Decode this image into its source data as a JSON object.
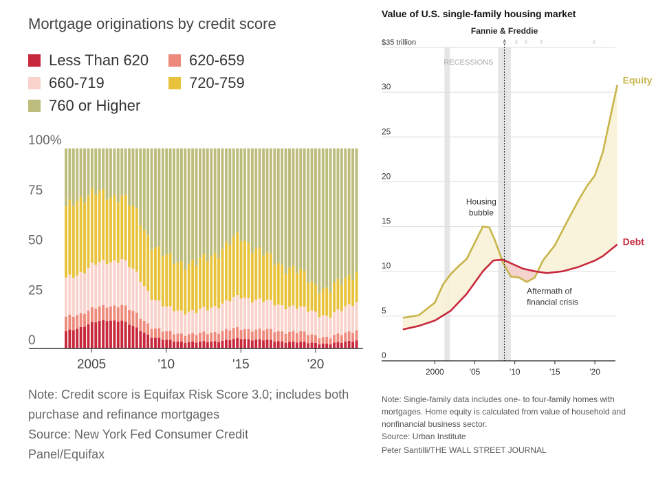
{
  "left": {
    "title": "Mortgage originations by credit score",
    "note": "Note: Credit score is Equifax Risk Score 3.0; includes both purchase and refinance mortgages",
    "source": "Source: New York Fed Consumer Credit Panel/Equifax"
  },
  "right": {
    "title": "Value of U.S. single-family housing market",
    "note": "Note: Single-family data includes one- to four-family homes with mortgages. Home equity is calculated from value of household and nonfinancial business sector.",
    "source": "Source: Urban Institute",
    "credit": "Peter Santilli/THE WALL STREET JOURNAL"
  },
  "chart_data": [
    {
      "type": "bar",
      "stacked": true,
      "title": "Mortgage originations by credit score",
      "xlabel": "",
      "ylabel": "",
      "ylim": [
        0,
        100
      ],
      "yticks": [
        "0",
        "25",
        "50",
        "75",
        "100%"
      ],
      "xticks": [
        {
          "label": "2005",
          "year": 2005
        },
        {
          "label": "'10",
          "year": 2010
        },
        {
          "label": "'15",
          "year": 2015
        },
        {
          "label": "'20",
          "year": 2020
        }
      ],
      "period": "quarterly, 2003 Q1 - 2022 Q3",
      "x_start": 2003,
      "legend_position": "top",
      "series": [
        {
          "name": "Less Than 620",
          "color": "#c8283c",
          "anchors": [
            [
              2003,
              8
            ],
            [
              2004,
              10
            ],
            [
              2005,
              13
            ],
            [
              2006,
              14
            ],
            [
              2007,
              14
            ],
            [
              2008,
              10
            ],
            [
              2009,
              6
            ],
            [
              2010,
              4
            ],
            [
              2012,
              3
            ],
            [
              2014,
              4
            ],
            [
              2015,
              5
            ],
            [
              2017,
              4
            ],
            [
              2019,
              3
            ],
            [
              2020,
              3
            ],
            [
              2021,
              2
            ],
            [
              2022.5,
              4
            ]
          ]
        },
        {
          "name": "620-659",
          "color": "#ee8a7c",
          "anchors": [
            [
              2003,
              7
            ],
            [
              2004,
              7
            ],
            [
              2005,
              7
            ],
            [
              2006,
              7
            ],
            [
              2007,
              8
            ],
            [
              2008,
              7
            ],
            [
              2009,
              5
            ],
            [
              2010,
              4
            ],
            [
              2012,
              4
            ],
            [
              2014,
              5
            ],
            [
              2015,
              5
            ],
            [
              2017,
              5
            ],
            [
              2019,
              5
            ],
            [
              2020,
              4
            ],
            [
              2021,
              3
            ],
            [
              2022.5,
              5
            ]
          ]
        },
        {
          "name": "660-719",
          "color": "#f9d3cb",
          "anchors": [
            [
              2003,
              19
            ],
            [
              2004,
              20
            ],
            [
              2005,
              22
            ],
            [
              2006,
              22
            ],
            [
              2007,
              23
            ],
            [
              2008,
              20
            ],
            [
              2009,
              15
            ],
            [
              2010,
              12
            ],
            [
              2012,
              11
            ],
            [
              2014,
              14
            ],
            [
              2015,
              16
            ],
            [
              2017,
              14
            ],
            [
              2019,
              12
            ],
            [
              2020,
              12
            ],
            [
              2021,
              10
            ],
            [
              2022.5,
              14
            ]
          ]
        },
        {
          "name": "720-759",
          "color": "#e8c23a",
          "anchors": [
            [
              2003,
              34
            ],
            [
              2004,
              38
            ],
            [
              2005,
              36
            ],
            [
              2006,
              33
            ],
            [
              2007,
              32
            ],
            [
              2008,
              30
            ],
            [
              2009,
              27
            ],
            [
              2010,
              25
            ],
            [
              2012,
              24
            ],
            [
              2014,
              28
            ],
            [
              2015,
              30
            ],
            [
              2017,
              22
            ],
            [
              2019,
              18
            ],
            [
              2020,
              14
            ],
            [
              2021,
              13
            ],
            [
              2022.5,
              15
            ]
          ]
        },
        {
          "name": "760 or Higher",
          "color": "#bcbc7c",
          "anchors": "remainder to 100"
        }
      ]
    },
    {
      "type": "line",
      "title": "Value of U.S. single-family housing market",
      "ylim": [
        0,
        35
      ],
      "yticks": [
        "0",
        "5",
        "10",
        "15",
        "20",
        "25",
        "30",
        "$35 trillion"
      ],
      "xticks": [
        {
          "label": "2000",
          "year": 2000
        },
        {
          "label": "'05",
          "year": 2005
        },
        {
          "label": "'10",
          "year": 2010
        },
        {
          "label": "'15",
          "year": 2015
        },
        {
          "label": "'20",
          "year": 2020
        }
      ],
      "xlim": [
        1995.5,
        2023
      ],
      "recessions": [
        [
          2001.2,
          2001.9
        ],
        [
          2007.9,
          2009.5
        ]
      ],
      "recessions_label": "RECESSIONS",
      "event_marker": {
        "label": "Fannie & Freddie",
        "year": 2008.7
      },
      "pins": [
        2010.2,
        2011.4,
        2013.3,
        2019.9
      ],
      "annotations": [
        {
          "text": [
            "Housing",
            "bubble"
          ],
          "year": 2005.8,
          "value": 16
        },
        {
          "text": [
            "Aftermath of",
            "financial crisis"
          ],
          "year": 2011.5,
          "value": 7.5
        }
      ],
      "series": [
        {
          "name": "Equity",
          "color": "#c8b44a",
          "points": [
            [
              1996,
              4.8
            ],
            [
              1998,
              5.1
            ],
            [
              2000,
              6.5
            ],
            [
              2001,
              8.5
            ],
            [
              2002,
              9.7
            ],
            [
              2003,
              10.6
            ],
            [
              2004,
              11.4
            ],
            [
              2005,
              13.2
            ],
            [
              2006,
              15.0
            ],
            [
              2006.8,
              14.9
            ],
            [
              2007.5,
              13.5
            ],
            [
              2008.5,
              11.0
            ],
            [
              2009.5,
              9.4
            ],
            [
              2010.5,
              9.3
            ],
            [
              2011.5,
              8.8
            ],
            [
              2012.5,
              9.3
            ],
            [
              2013.5,
              11.2
            ],
            [
              2015,
              12.9
            ],
            [
              2016.5,
              15.5
            ],
            [
              2018,
              18.0
            ],
            [
              2019,
              19.5
            ],
            [
              2020,
              20.7
            ],
            [
              2021,
              23.3
            ],
            [
              2022,
              27.5
            ],
            [
              2022.8,
              30.8
            ]
          ]
        },
        {
          "name": "Debt",
          "color": "#c8283c",
          "points": [
            [
              1996,
              3.5
            ],
            [
              1998,
              3.9
            ],
            [
              2000,
              4.5
            ],
            [
              2002,
              5.6
            ],
            [
              2004,
              7.5
            ],
            [
              2006,
              10.0
            ],
            [
              2007.3,
              11.2
            ],
            [
              2008.5,
              11.3
            ],
            [
              2009.5,
              10.9
            ],
            [
              2011,
              10.3
            ],
            [
              2012.5,
              10.0
            ],
            [
              2014,
              9.8
            ],
            [
              2016,
              10.0
            ],
            [
              2018,
              10.5
            ],
            [
              2020,
              11.2
            ],
            [
              2021,
              11.7
            ],
            [
              2022.8,
              13.0
            ]
          ]
        }
      ]
    }
  ]
}
